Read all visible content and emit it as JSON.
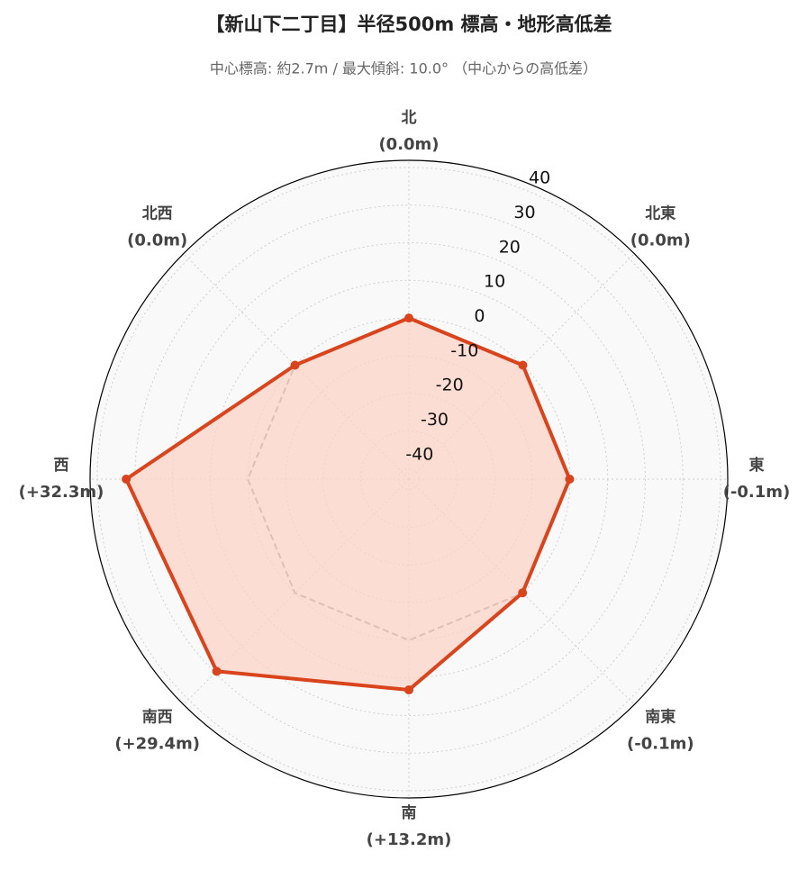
{
  "chart_data": {
    "type": "radar",
    "title": "【新山下二丁目】半径500m 標高・地形高低差",
    "subtitle": "中心標高: 約2.7m / 最大傾斜: 10.0° （中心からの高低差）",
    "categories": [
      "北",
      "北東",
      "東",
      "南東",
      "南",
      "南西",
      "西",
      "北西"
    ],
    "series": [
      {
        "color": "#d9441c",
        "fill": "#fbd3c7",
        "values": [
          0.0,
          0.0,
          -0.1,
          -0.1,
          13.2,
          29.4,
          32.3,
          0.0
        ],
        "value_labels": [
          "(0.0m)",
          "(0.0m)",
          "(-0.1m)",
          "(-0.1m)",
          "(+13.2m)",
          "(+29.4m)",
          "(+32.3m)",
          "(0.0m)"
        ]
      }
    ],
    "reference_line": {
      "values": [
        0,
        0,
        0,
        0,
        0,
        0,
        0,
        0
      ],
      "color": "#888888",
      "dashed": true
    },
    "ylim": [
      -42.8,
      41.9
    ],
    "yticks": [
      -40,
      -30,
      -20,
      -10,
      0,
      10,
      20,
      30,
      40
    ],
    "grid": true
  }
}
